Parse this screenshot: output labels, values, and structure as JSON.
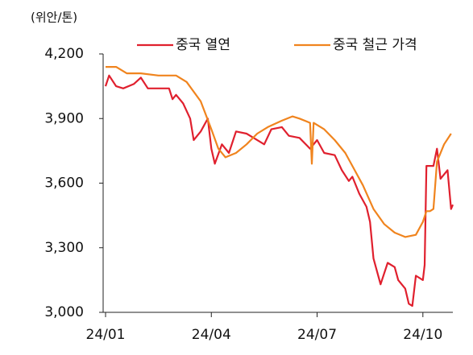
{
  "chart_data": {
    "type": "line",
    "unit_label": "(위안/톤)",
    "xlim": [
      0,
      9.85
    ],
    "xticks": [
      {
        "value": 0,
        "label": "24/01"
      },
      {
        "value": 3,
        "label": "24/04"
      },
      {
        "value": 6,
        "label": "24/07"
      },
      {
        "value": 9,
        "label": "24/10"
      }
    ],
    "ylim": [
      3000,
      4200
    ],
    "yticks": [
      {
        "value": 3000,
        "label": "3,000"
      },
      {
        "value": 3300,
        "label": "3,300"
      },
      {
        "value": 3600,
        "label": "3,600"
      },
      {
        "value": 3900,
        "label": "3,900"
      },
      {
        "value": 4200,
        "label": "4,200"
      }
    ],
    "grid": false,
    "legend": "top",
    "series": [
      {
        "name": "중국 열연",
        "color": "#e0202e",
        "x": [
          0,
          0.1,
          0.3,
          0.5,
          0.8,
          1.0,
          1.2,
          1.5,
          1.8,
          1.9,
          2.0,
          2.2,
          2.4,
          2.5,
          2.7,
          2.9,
          3.0,
          3.1,
          3.3,
          3.5,
          3.7,
          4.0,
          4.2,
          4.5,
          4.7,
          5.0,
          5.2,
          5.5,
          5.8,
          6.0,
          6.2,
          6.5,
          6.7,
          6.9,
          7.0,
          7.2,
          7.4,
          7.5,
          7.6,
          7.8,
          8.0,
          8.2,
          8.3,
          8.5,
          8.6,
          8.7,
          8.8,
          9.0,
          9.05,
          9.1,
          9.3,
          9.4,
          9.5,
          9.7,
          9.8,
          9.85
        ],
        "values": [
          4050,
          4100,
          4050,
          4040,
          4060,
          4090,
          4040,
          4040,
          4040,
          3990,
          4010,
          3970,
          3900,
          3800,
          3840,
          3900,
          3760,
          3690,
          3780,
          3740,
          3840,
          3830,
          3810,
          3780,
          3850,
          3860,
          3820,
          3810,
          3760,
          3800,
          3740,
          3730,
          3660,
          3610,
          3630,
          3550,
          3490,
          3420,
          3250,
          3130,
          3230,
          3210,
          3150,
          3110,
          3040,
          3030,
          3170,
          3150,
          3220,
          3680,
          3680,
          3760,
          3620,
          3660,
          3480,
          3500
        ]
      },
      {
        "name": "중국 철근 가격",
        "color": "#f0841e",
        "x": [
          0,
          0.3,
          0.6,
          1.0,
          1.5,
          2.0,
          2.3,
          2.7,
          3.0,
          3.2,
          3.4,
          3.7,
          4.0,
          4.3,
          4.6,
          5.0,
          5.3,
          5.5,
          5.8,
          5.85,
          5.9,
          6.2,
          6.5,
          6.8,
          7.0,
          7.3,
          7.6,
          7.9,
          8.2,
          8.5,
          8.8,
          9.0,
          9.1,
          9.2,
          9.3,
          9.4,
          9.6,
          9.8
        ],
        "values": [
          4140,
          4140,
          4110,
          4110,
          4100,
          4100,
          4070,
          3980,
          3850,
          3760,
          3720,
          3740,
          3780,
          3830,
          3860,
          3890,
          3910,
          3900,
          3880,
          3690,
          3880,
          3850,
          3800,
          3740,
          3680,
          3590,
          3480,
          3410,
          3370,
          3350,
          3360,
          3420,
          3470,
          3470,
          3480,
          3700,
          3780,
          3830
        ]
      }
    ]
  }
}
